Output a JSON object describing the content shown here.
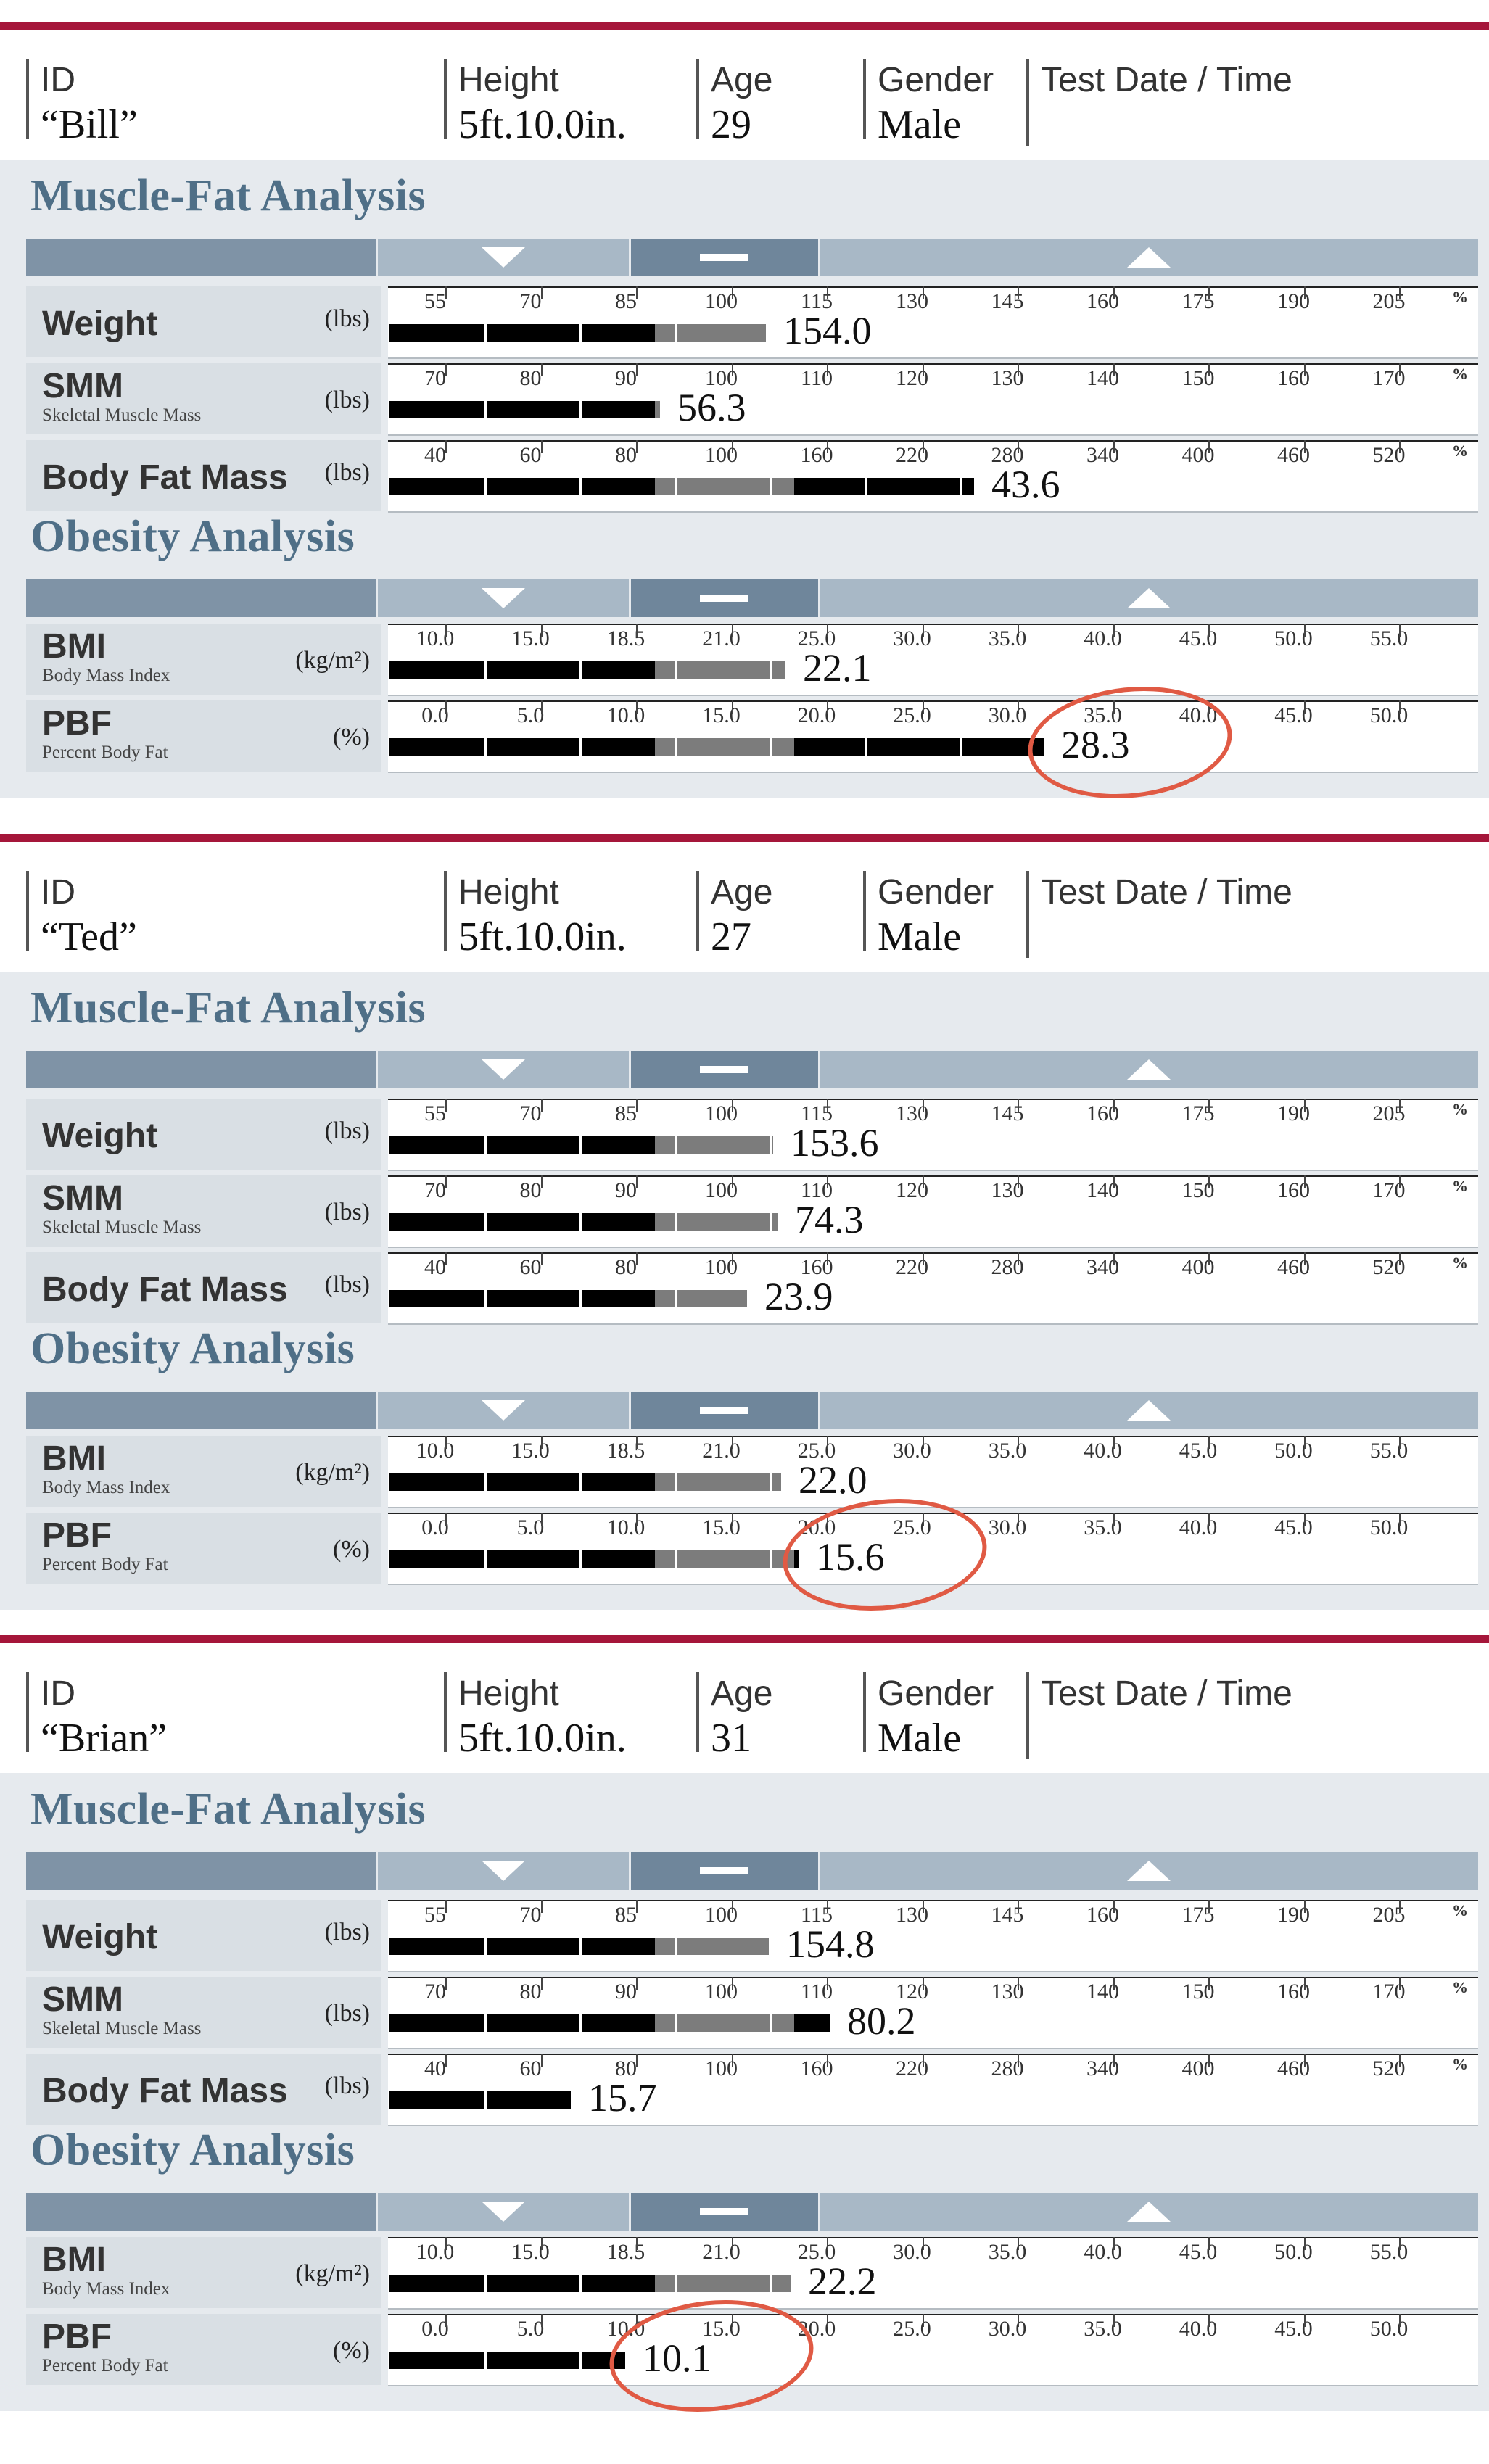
{
  "labels": {
    "id": "ID",
    "height": "Height",
    "age": "Age",
    "gender": "Gender",
    "test_date": "Test Date / Time",
    "muscle_fat": "Muscle-Fat Analysis",
    "obesity": "Obesity Analysis",
    "weight": "Weight",
    "smm": "SMM",
    "smm_sub": "Skeletal Muscle Mass",
    "bfm": "Body Fat Mass",
    "bmi": "BMI",
    "bmi_sub": "Body Mass Index",
    "pbf": "PBF",
    "pbf_sub": "Percent Body Fat",
    "unit_lbs": "(lbs)",
    "unit_bmi": "(kg/m²)",
    "unit_pct": "(%)",
    "pct_sign": "%"
  },
  "scales": {
    "weight": [
      "55",
      "70",
      "85",
      "100",
      "115",
      "130",
      "145",
      "160",
      "175",
      "190",
      "205"
    ],
    "smm": [
      "70",
      "80",
      "90",
      "100",
      "110",
      "120",
      "130",
      "140",
      "150",
      "160",
      "170"
    ],
    "bfm": [
      "40",
      "60",
      "80",
      "100",
      "160",
      "220",
      "280",
      "340",
      "400",
      "460",
      "520"
    ],
    "bmi": [
      "10.0",
      "15.0",
      "18.5",
      "21.0",
      "25.0",
      "30.0",
      "35.0",
      "40.0",
      "45.0",
      "50.0",
      "55.0"
    ],
    "pbf": [
      "0.0",
      "5.0",
      "10.0",
      "15.0",
      "20.0",
      "25.0",
      "30.0",
      "35.0",
      "40.0",
      "45.0",
      "50.0"
    ]
  },
  "colors": {
    "accent_rule": "#a5163a",
    "title": "#4f6f87",
    "circle": "#e05a44"
  },
  "cards": [
    {
      "id": "“Bill”",
      "height": "5ft.10.0in.",
      "age": "29",
      "gender": "Male",
      "weight": "154.0",
      "smm": "56.3",
      "bfm": "43.6",
      "bmi": "22.1",
      "pbf": "28.3",
      "fill_fraction": {
        "weight": 0.346,
        "smm": 0.249,
        "bfm": 0.538,
        "bmi": 0.364,
        "pbf": 0.602
      }
    },
    {
      "id": "“Ted”",
      "height": "5ft.10.0in.",
      "age": "27",
      "gender": "Male",
      "weight": "153.6",
      "smm": "74.3",
      "bfm": "23.9",
      "bmi": "22.0",
      "pbf": "15.6",
      "fill_fraction": {
        "weight": 0.353,
        "smm": 0.357,
        "bfm": 0.329,
        "bmi": 0.36,
        "pbf": 0.376
      }
    },
    {
      "id": "“Brian”",
      "height": "5ft.10.0in.",
      "age": "31",
      "gender": "Male",
      "weight": "154.8",
      "smm": "80.2",
      "bfm": "15.7",
      "bmi": "22.2",
      "pbf": "10.1",
      "fill_fraction": {
        "weight": 0.349,
        "smm": 0.405,
        "bfm": 0.167,
        "bmi": 0.369,
        "pbf": 0.217
      }
    }
  ]
}
